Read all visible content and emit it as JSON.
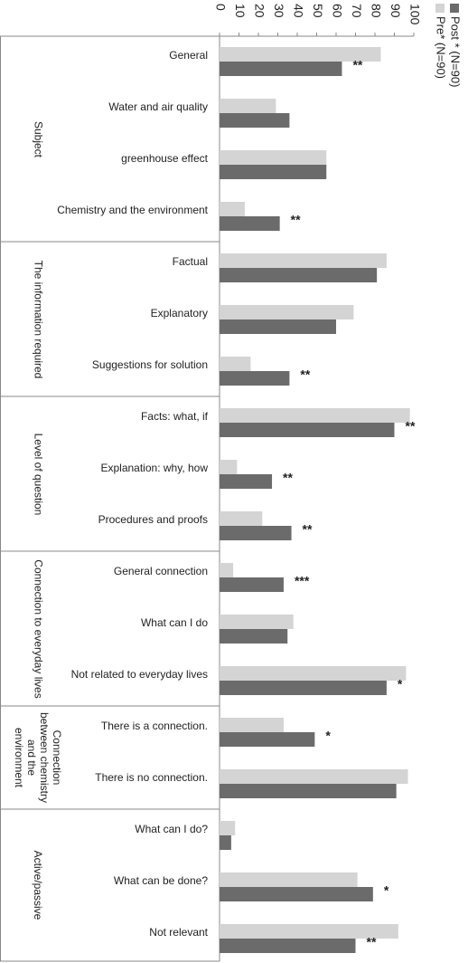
{
  "chart_data": {
    "type": "bar",
    "orientation": "horizontal",
    "categories": [
      "General",
      "Water and air quality",
      "greenhouse effect",
      "Chemistry and the environment",
      "Factual",
      "Explanatory",
      "Suggestions for solution",
      "Facts: what, if",
      "Explanation: why, how",
      "Procedures  and proofs",
      "General connection",
      "What can I do",
      "Not related to everyday lives",
      "There is a connection.",
      "There is no connection.",
      "What can I do?",
      "What can be done?",
      "Not relevant"
    ],
    "groups": [
      {
        "name": "Subject",
        "size": 4
      },
      {
        "name": "The information required",
        "size": 3
      },
      {
        "name": "Level of question",
        "size": 3
      },
      {
        "name": "Connection to everyday lives",
        "size": 3
      },
      {
        "name": "Connection between chemistry and the environment",
        "size": 2
      },
      {
        "name": "Active/passive",
        "size": 3
      }
    ],
    "series": [
      {
        "name": "Pre* (N=90)",
        "color": "#d4d4d4",
        "values": [
          83,
          29,
          55,
          13,
          86,
          69,
          16,
          98,
          9,
          22,
          7,
          38,
          96,
          33,
          97,
          8,
          71,
          92
        ]
      },
      {
        "name": "Post * (N=90)",
        "color": "#6b6b6b",
        "values": [
          63,
          36,
          55,
          31,
          81,
          60,
          36,
          90,
          27,
          37,
          33,
          35,
          86,
          49,
          91,
          6,
          79,
          70
        ]
      }
    ],
    "significance": [
      "**",
      null,
      null,
      "**",
      null,
      null,
      "**",
      "**",
      "**",
      "**",
      "***",
      null,
      "*",
      "*",
      null,
      null,
      "*",
      "**"
    ],
    "xlim": [
      0,
      100
    ],
    "xticks": [
      0,
      10,
      20,
      30,
      40,
      50,
      60,
      70,
      80,
      90,
      100
    ]
  }
}
